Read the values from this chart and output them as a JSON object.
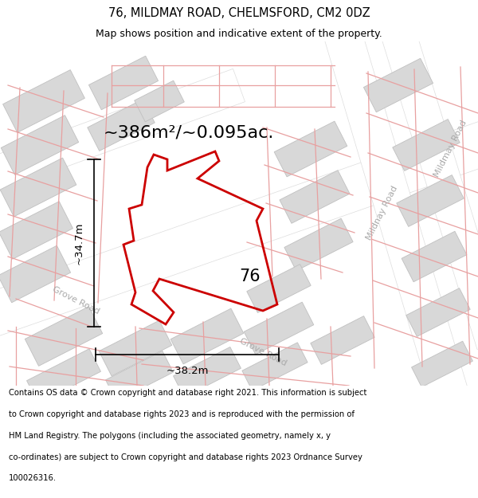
{
  "title": "76, MILDMAY ROAD, CHELMSFORD, CM2 0DZ",
  "subtitle": "Map shows position and indicative extent of the property.",
  "footer_lines": [
    "Contains OS data © Crown copyright and database right 2021. This information is subject",
    "to Crown copyright and database rights 2023 and is reproduced with the permission of",
    "HM Land Registry. The polygons (including the associated geometry, namely x, y",
    "co-ordinates) are subject to Crown copyright and database rights 2023 Ordnance Survey",
    "100026316."
  ],
  "area_label": "~386m²/~0.095ac.",
  "number_label": "76",
  "dim_horiz": "~38.2m",
  "dim_vert": "~34.7m",
  "map_bg": "#f0f0f0",
  "building_fill": "#d8d8d8",
  "building_edge": "#c0c0c0",
  "road_fill": "#ffffff",
  "road_edge": "#dddddd",
  "pink_color": "#e8a0a0",
  "red_color": "#cc0000",
  "title_fontsize": 10.5,
  "subtitle_fontsize": 9,
  "footer_fontsize": 7.2,
  "area_fontsize": 16,
  "dim_fontsize": 9.5,
  "num_fontsize": 15,
  "road_label_fontsize": 8,
  "road_label_color": "#aaaaaa"
}
